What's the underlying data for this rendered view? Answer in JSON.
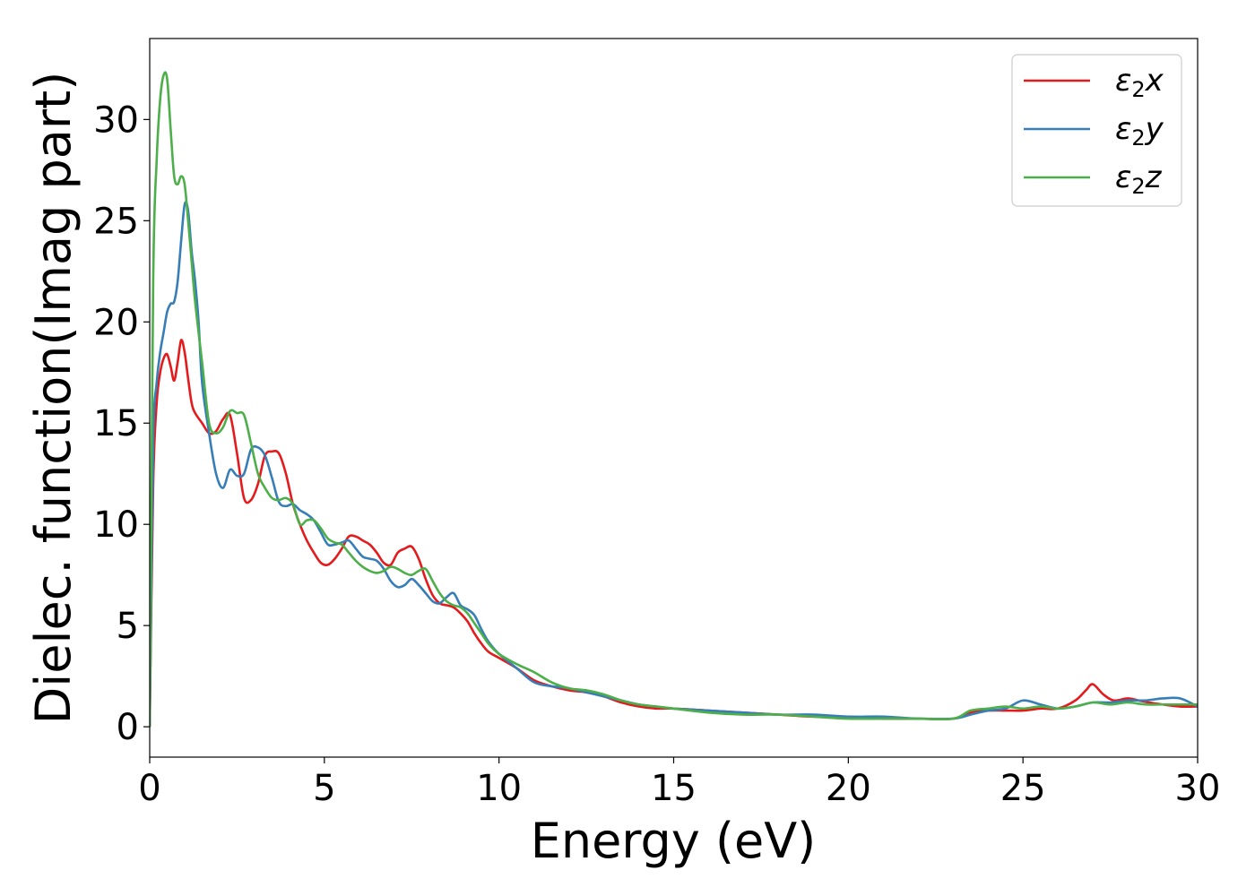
{
  "chart_data": {
    "type": "line",
    "title": "",
    "xlabel": "Energy (eV)",
    "ylabel": "Dielec. function(Imag part)",
    "xlim": [
      0,
      30
    ],
    "ylim": [
      -1.5,
      34
    ],
    "xticks": [
      0,
      5,
      10,
      15,
      20,
      25,
      30
    ],
    "yticks": [
      0,
      5,
      10,
      15,
      20,
      25,
      30
    ],
    "grid": false,
    "legend_position": "top-right",
    "series": [
      {
        "name": "ε2x",
        "legend_main": "ε",
        "legend_sub": "2",
        "legend_var": "x",
        "color": "#e41a1c",
        "x": [
          0,
          0.1,
          0.2,
          0.3,
          0.4,
          0.5,
          0.6,
          0.7,
          0.8,
          0.9,
          1.0,
          1.1,
          1.2,
          1.3,
          1.5,
          1.7,
          1.9,
          2.1,
          2.3,
          2.5,
          2.7,
          2.9,
          3.1,
          3.3,
          3.5,
          3.7,
          3.9,
          4.1,
          4.3,
          4.5,
          4.7,
          4.9,
          5.1,
          5.3,
          5.5,
          5.7,
          5.9,
          6.1,
          6.3,
          6.5,
          6.7,
          6.9,
          7.1,
          7.3,
          7.5,
          7.7,
          7.9,
          8.1,
          8.3,
          8.5,
          8.7,
          8.9,
          9.1,
          9.3,
          9.5,
          9.7,
          10.0,
          10.5,
          11.0,
          11.5,
          12.0,
          12.5,
          13.0,
          13.5,
          14.0,
          14.5,
          15.0,
          16.0,
          17.0,
          18.0,
          19.0,
          20.0,
          21.0,
          22.0,
          23.0,
          23.5,
          24.0,
          24.5,
          25.0,
          25.5,
          26.0,
          26.5,
          26.8,
          27.0,
          27.3,
          27.6,
          28.0,
          28.3,
          28.6,
          29.0,
          29.5,
          30.0
        ],
        "y": [
          0,
          12,
          16,
          17.5,
          18.2,
          18.4,
          17.8,
          17.1,
          18.0,
          19.1,
          18.5,
          17.2,
          16.0,
          15.5,
          15.0,
          14.5,
          14.6,
          15.2,
          15.4,
          13.5,
          11.3,
          11.2,
          12.0,
          13.4,
          13.6,
          13.5,
          12.5,
          11.0,
          10.0,
          9.2,
          8.6,
          8.1,
          8.0,
          8.3,
          8.8,
          9.4,
          9.4,
          9.2,
          9.0,
          8.6,
          8.1,
          8.0,
          8.6,
          8.8,
          8.9,
          8.3,
          7.3,
          6.5,
          6.1,
          6.0,
          5.9,
          5.6,
          5.2,
          4.6,
          4.1,
          3.7,
          3.4,
          2.9,
          2.3,
          2.0,
          1.8,
          1.7,
          1.5,
          1.2,
          1.0,
          0.9,
          0.9,
          0.8,
          0.7,
          0.6,
          0.5,
          0.5,
          0.4,
          0.4,
          0.4,
          0.7,
          0.8,
          0.8,
          0.8,
          0.9,
          0.9,
          1.3,
          1.8,
          2.1,
          1.6,
          1.3,
          1.4,
          1.3,
          1.2,
          1.1,
          1.0,
          1.0
        ]
      },
      {
        "name": "ε2y",
        "legend_main": "ε",
        "legend_sub": "2",
        "legend_var": "y",
        "color": "#377eb8",
        "x": [
          0,
          0.1,
          0.2,
          0.3,
          0.4,
          0.5,
          0.6,
          0.7,
          0.8,
          0.9,
          1.0,
          1.1,
          1.2,
          1.3,
          1.4,
          1.5,
          1.7,
          1.9,
          2.1,
          2.3,
          2.5,
          2.7,
          2.9,
          3.1,
          3.3,
          3.5,
          3.7,
          3.9,
          4.1,
          4.3,
          4.5,
          4.7,
          4.9,
          5.1,
          5.3,
          5.5,
          5.7,
          5.9,
          6.1,
          6.3,
          6.5,
          6.7,
          6.9,
          7.1,
          7.3,
          7.5,
          7.7,
          7.9,
          8.1,
          8.3,
          8.5,
          8.7,
          8.9,
          9.1,
          9.3,
          9.5,
          9.7,
          10.0,
          10.5,
          11.0,
          11.5,
          12.0,
          12.5,
          13.0,
          13.5,
          14.0,
          14.5,
          15.0,
          16.0,
          17.0,
          18.0,
          19.0,
          20.0,
          21.0,
          22.0,
          23.0,
          23.5,
          24.0,
          24.5,
          25.0,
          25.5,
          26.0,
          26.5,
          27.0,
          27.5,
          28.0,
          28.5,
          29.0,
          29.5,
          30.0
        ],
        "y": [
          0,
          14,
          17,
          18.5,
          19.5,
          20.5,
          20.9,
          21.0,
          22.0,
          24.0,
          25.8,
          25.5,
          23.5,
          22.0,
          20.0,
          17.0,
          14.5,
          12.5,
          11.8,
          12.7,
          12.4,
          12.5,
          13.7,
          13.8,
          13.4,
          12.3,
          11.1,
          10.9,
          11.0,
          10.7,
          10.5,
          10.2,
          9.6,
          9.0,
          9.0,
          9.1,
          9.2,
          8.8,
          8.4,
          8.3,
          8.2,
          7.8,
          7.2,
          6.9,
          7.0,
          7.3,
          7.0,
          6.6,
          6.2,
          6.1,
          6.4,
          6.6,
          6.0,
          5.8,
          5.5,
          4.8,
          4.2,
          3.6,
          2.9,
          2.2,
          2.0,
          1.9,
          1.7,
          1.5,
          1.3,
          1.1,
          1.0,
          0.9,
          0.8,
          0.7,
          0.6,
          0.6,
          0.5,
          0.5,
          0.4,
          0.4,
          0.6,
          0.8,
          0.9,
          1.3,
          1.1,
          0.9,
          1.0,
          1.2,
          1.2,
          1.3,
          1.3,
          1.4,
          1.4,
          1.0
        ]
      },
      {
        "name": "ε2z",
        "legend_main": "ε",
        "legend_sub": "2",
        "legend_var": "z",
        "color": "#4daf4a",
        "x": [
          0,
          0.1,
          0.2,
          0.3,
          0.4,
          0.5,
          0.6,
          0.7,
          0.8,
          0.9,
          1.0,
          1.1,
          1.2,
          1.3,
          1.5,
          1.7,
          1.9,
          2.1,
          2.3,
          2.5,
          2.7,
          2.9,
          3.1,
          3.3,
          3.5,
          3.7,
          3.9,
          4.1,
          4.3,
          4.5,
          4.7,
          4.9,
          5.1,
          5.3,
          5.5,
          5.7,
          5.9,
          6.1,
          6.3,
          6.5,
          6.7,
          6.9,
          7.1,
          7.3,
          7.5,
          7.7,
          7.9,
          8.1,
          8.3,
          8.5,
          8.7,
          8.9,
          9.1,
          9.3,
          9.5,
          9.7,
          10.0,
          10.5,
          11.0,
          11.5,
          12.0,
          12.5,
          13.0,
          13.5,
          14.0,
          14.5,
          15.0,
          16.0,
          17.0,
          18.0,
          19.0,
          20.0,
          21.0,
          22.0,
          23.0,
          23.5,
          24.0,
          24.5,
          25.0,
          25.5,
          26.0,
          26.5,
          27.0,
          27.5,
          28.0,
          28.5,
          29.0,
          29.5,
          30.0
        ],
        "y": [
          0,
          22,
          28,
          31,
          32.2,
          32.0,
          29.5,
          27.2,
          26.8,
          27.2,
          26.8,
          25.0,
          23.0,
          21.0,
          18.0,
          15.0,
          14.5,
          14.8,
          15.6,
          15.5,
          15.4,
          14.0,
          12.5,
          11.8,
          11.3,
          11.2,
          11.3,
          11.0,
          10.0,
          10.2,
          10.2,
          9.8,
          9.3,
          9.1,
          9.0,
          8.6,
          8.2,
          7.9,
          7.7,
          7.6,
          7.7,
          7.9,
          7.8,
          7.6,
          7.5,
          7.7,
          7.8,
          7.2,
          6.6,
          6.2,
          6.0,
          5.9,
          5.6,
          5.1,
          4.6,
          4.1,
          3.6,
          3.1,
          2.7,
          2.2,
          1.9,
          1.8,
          1.6,
          1.3,
          1.1,
          1.0,
          0.9,
          0.7,
          0.6,
          0.6,
          0.5,
          0.4,
          0.4,
          0.4,
          0.4,
          0.8,
          0.9,
          1.0,
          0.9,
          1.0,
          0.9,
          1.0,
          1.2,
          1.1,
          1.2,
          1.1,
          1.1,
          1.1,
          1.1
        ]
      }
    ]
  }
}
